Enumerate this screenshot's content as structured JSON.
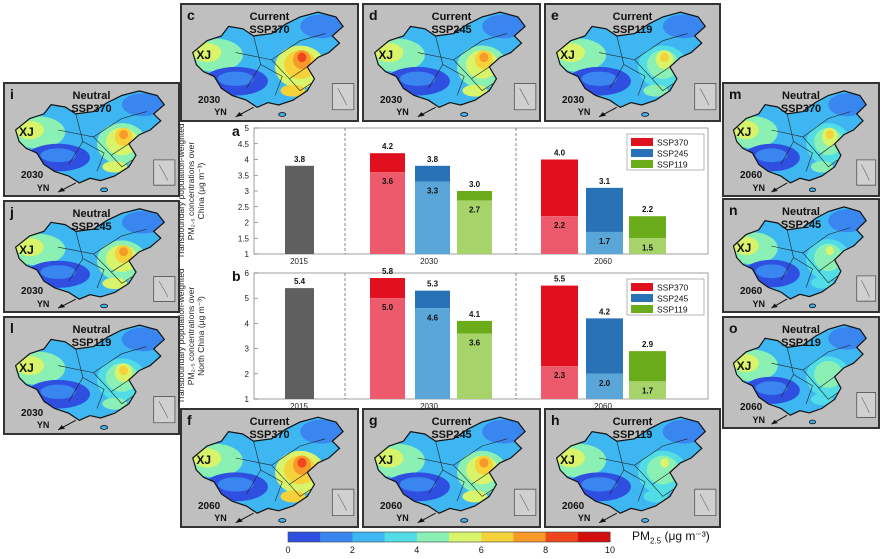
{
  "maps": [
    {
      "id": "c",
      "letter": "c",
      "line1": "Current",
      "line2": "SSP370",
      "year": "2030",
      "intensity": 0.85
    },
    {
      "id": "d",
      "letter": "d",
      "line1": "Current",
      "line2": "SSP245",
      "year": "2030",
      "intensity": 0.7
    },
    {
      "id": "e",
      "letter": "e",
      "line1": "Current",
      "line2": "SSP119",
      "year": "2030",
      "intensity": 0.55
    },
    {
      "id": "i",
      "letter": "i",
      "line1": "Neutral",
      "line2": "SSP370",
      "year": "2030",
      "intensity": 0.72
    },
    {
      "id": "j",
      "letter": "j",
      "line1": "Neutral",
      "line2": "SSP245",
      "year": "2030",
      "intensity": 0.6
    },
    {
      "id": "l",
      "letter": "l",
      "line1": "Neutral",
      "line2": "SSP119",
      "year": "2030",
      "intensity": 0.45
    },
    {
      "id": "m",
      "letter": "m",
      "line1": "Neutral",
      "line2": "SSP370",
      "year": "2060",
      "intensity": 0.55
    },
    {
      "id": "n",
      "letter": "n",
      "line1": "Neutral",
      "line2": "SSP245",
      "year": "2060",
      "intensity": 0.4
    },
    {
      "id": "o",
      "letter": "o",
      "line1": "Neutral",
      "line2": "SSP119",
      "year": "2060",
      "intensity": 0.2
    },
    {
      "id": "f",
      "letter": "f",
      "line1": "Current",
      "line2": "SSP370",
      "year": "2060",
      "intensity": 0.8
    },
    {
      "id": "g",
      "letter": "g",
      "line1": "Current",
      "line2": "SSP245",
      "year": "2060",
      "intensity": 0.6
    },
    {
      "id": "h",
      "letter": "h",
      "line1": "Current",
      "line2": "SSP119",
      "year": "2060",
      "intensity": 0.4
    }
  ],
  "map_labels": {
    "xj": "XJ",
    "yn": "YN"
  },
  "chart_data": [
    {
      "type": "bar",
      "panel": "a",
      "ylabel_lines": [
        "Transboundary population-weighted",
        "PM₂.₅ concentrations over",
        "China (μg m⁻³)"
      ],
      "ylim": [
        1,
        5
      ],
      "yticks": [
        "1",
        "1.5",
        "2",
        "2.5",
        "3",
        "3.5",
        "4",
        "4.5",
        "5"
      ],
      "ytick_values": [
        1,
        1.5,
        2,
        2.5,
        3,
        3.5,
        4,
        4.5,
        5
      ],
      "groups": [
        "2015",
        "2030",
        "2060"
      ],
      "bars": [
        {
          "group": "2015",
          "series": "2015",
          "total": 3.8,
          "base": null,
          "total_label": "3.8",
          "base_label": ""
        },
        {
          "group": "2030",
          "series": "SSP370",
          "total": 4.2,
          "base": 3.6,
          "total_label": "4.2",
          "base_label": "3.6"
        },
        {
          "group": "2030",
          "series": "SSP245",
          "total": 3.8,
          "base": 3.3,
          "total_label": "3.8",
          "base_label": "3.3"
        },
        {
          "group": "2030",
          "series": "SSP119",
          "total": 3.0,
          "base": 2.7,
          "total_label": "3.0",
          "base_label": "2.7"
        },
        {
          "group": "2060",
          "series": "SSP370",
          "total": 4.0,
          "base": 2.2,
          "total_label": "4.0",
          "base_label": "2.2"
        },
        {
          "group": "2060",
          "series": "SSP245",
          "total": 3.1,
          "base": 1.7,
          "total_label": "3.1",
          "base_label": "1.7"
        },
        {
          "group": "2060",
          "series": "SSP119",
          "total": 2.2,
          "base": 1.5,
          "total_label": "2.2",
          "base_label": "1.5"
        }
      ],
      "legend": [
        "SSP370",
        "SSP245",
        "SSP119"
      ]
    },
    {
      "type": "bar",
      "panel": "b",
      "ylabel_lines": [
        "Transboundary population-weighted",
        "PM₂.₅ concentrations over",
        "North China (μg m⁻³)"
      ],
      "ylim": [
        1,
        6
      ],
      "yticks": [
        "1",
        "2",
        "3",
        "4",
        "5",
        "6"
      ],
      "ytick_values": [
        1,
        2,
        3,
        4,
        5,
        6
      ],
      "groups": [
        "2015",
        "2030",
        "2060"
      ],
      "bars": [
        {
          "group": "2015",
          "series": "2015",
          "total": 5.4,
          "base": null,
          "total_label": "5.4",
          "base_label": ""
        },
        {
          "group": "2030",
          "series": "SSP370",
          "total": 5.8,
          "base": 5.0,
          "total_label": "5.8",
          "base_label": "5.0"
        },
        {
          "group": "2030",
          "series": "SSP245",
          "total": 5.3,
          "base": 4.6,
          "total_label": "5.3",
          "base_label": "4.6"
        },
        {
          "group": "2030",
          "series": "SSP119",
          "total": 4.1,
          "base": 3.6,
          "total_label": "4.1",
          "base_label": "3.6"
        },
        {
          "group": "2060",
          "series": "SSP370",
          "total": 5.5,
          "base": 2.3,
          "total_label": "5.5",
          "base_label": "2.3"
        },
        {
          "group": "2060",
          "series": "SSP245",
          "total": 4.2,
          "base": 2.0,
          "total_label": "4.2",
          "base_label": "2.0"
        },
        {
          "group": "2060",
          "series": "SSP119",
          "total": 2.9,
          "base": 1.7,
          "total_label": "2.9",
          "base_label": "1.7"
        }
      ],
      "legend": [
        "SSP370",
        "SSP245",
        "SSP119"
      ]
    }
  ],
  "colors": {
    "SSP370_dark": "#e0101e",
    "SSP370_light": "#ec5a6c",
    "SSP245_dark": "#2a72b8",
    "SSP245_light": "#5aa6d8",
    "SSP119_dark": "#6aac1a",
    "SSP119_light": "#a6d36a",
    "2015": "#5f5f5f"
  },
  "colorbar": {
    "label": "PM",
    "sub": "2.5",
    "unit": " (μg m⁻³)",
    "ticks": [
      "0",
      "2",
      "4",
      "6",
      "8",
      "10"
    ],
    "tick_values": [
      0,
      2,
      4,
      6,
      8,
      10
    ],
    "colors": [
      "#2f4fe0",
      "#3a86f0",
      "#3db6f2",
      "#52dde6",
      "#8af0b4",
      "#d8f46a",
      "#f6d23a",
      "#f79a2a",
      "#f0461e",
      "#d4100e"
    ]
  }
}
